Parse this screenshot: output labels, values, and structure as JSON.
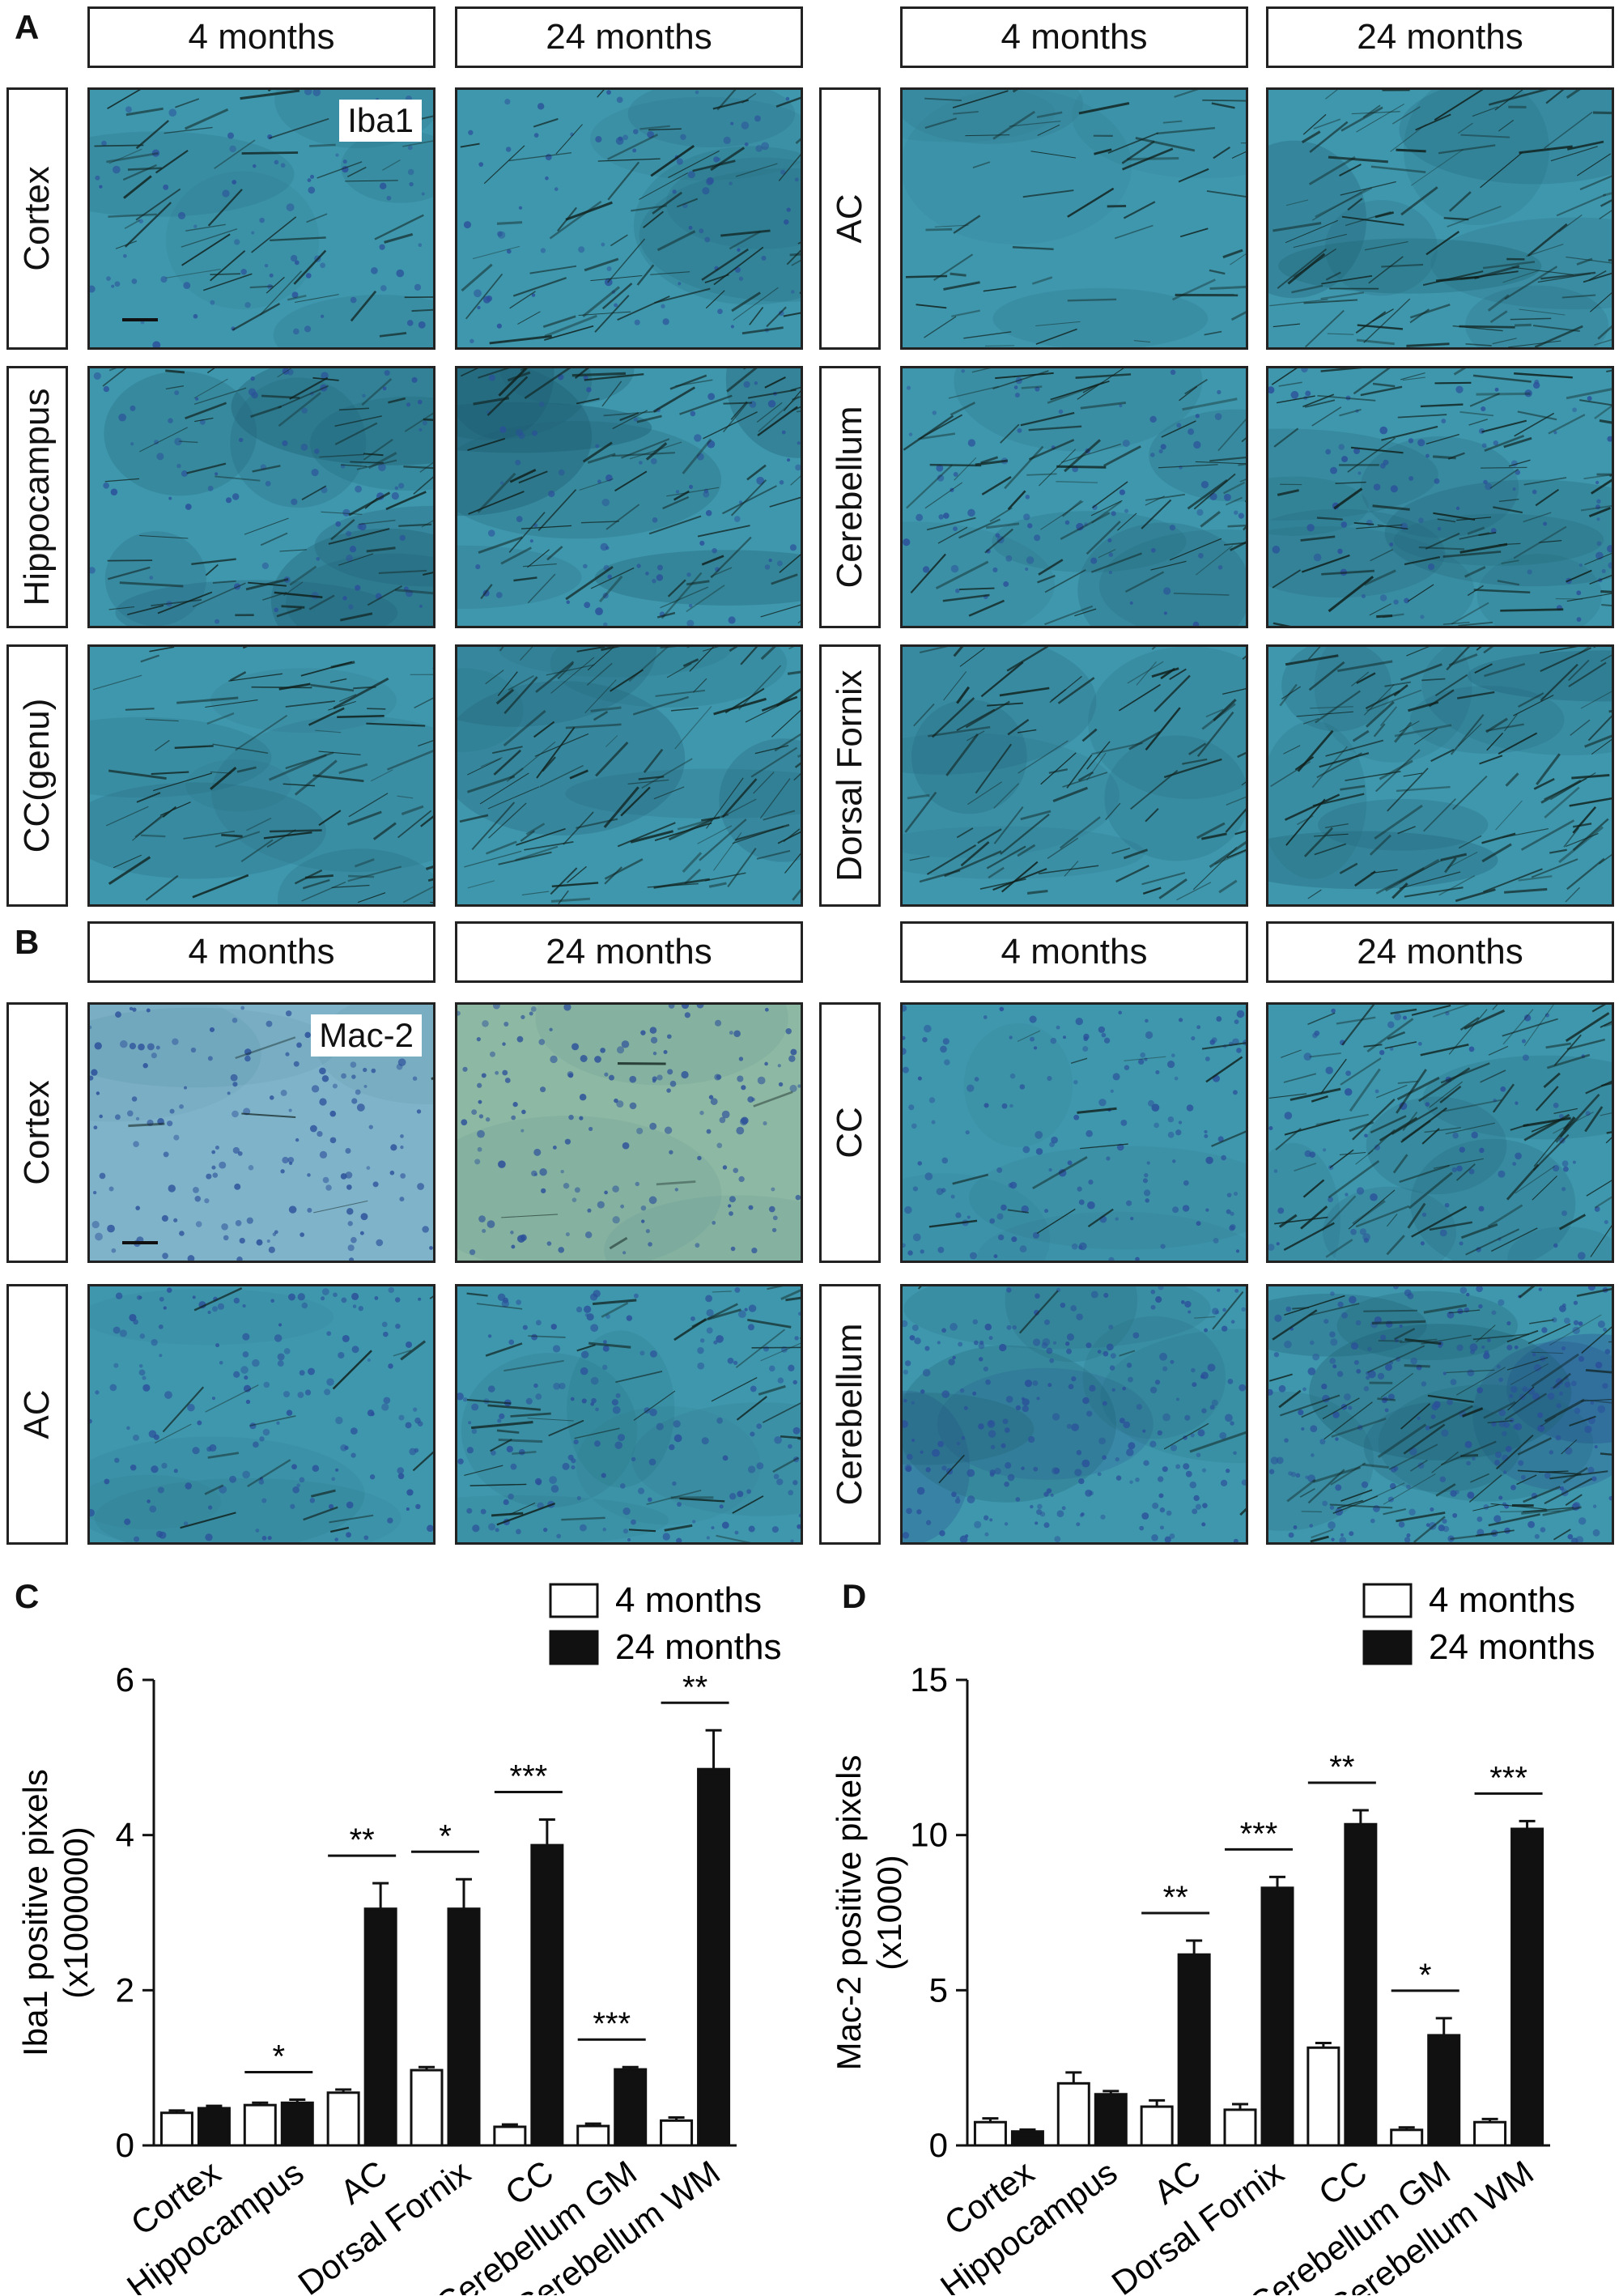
{
  "panels": {
    "A": {
      "letter": "A",
      "stain": "Iba1",
      "col_headers": [
        "4 months",
        "24 months",
        "4 months",
        "24 months"
      ],
      "left_rows": [
        "Cortex",
        "Hippocampus",
        "CC(genu)"
      ],
      "right_rows": [
        "AC",
        "Cerebellum",
        "Dorsal Fornix"
      ]
    },
    "B": {
      "letter": "B",
      "stain": "Mac-2",
      "col_headers": [
        "4 months",
        "24 months",
        "4 months",
        "24 months"
      ],
      "left_rows": [
        "Cortex",
        "AC"
      ],
      "right_rows": [
        "CC",
        "Cerebellum"
      ]
    },
    "C": {
      "letter": "C"
    },
    "D": {
      "letter": "D"
    }
  },
  "colors": {
    "tissue_base": "#3f97ad",
    "tissue_dark": "#1f5f73",
    "tissue_nuclei": "#2b4f9a",
    "stain_fibers": "#10201c",
    "bar_young": "#ffffff",
    "bar_old": "#111111"
  },
  "chart_data": [
    {
      "type": "bar",
      "panel": "C",
      "categories": [
        "Cortex",
        "Hippocampus",
        "AC",
        "Dorsal Fornix",
        "CC",
        "Cerebellum GM",
        "Cerebellum WM"
      ],
      "series": [
        {
          "name": "4 months",
          "values": [
            0.42,
            0.52,
            0.68,
            0.97,
            0.24,
            0.25,
            0.32
          ],
          "errors": [
            0.03,
            0.03,
            0.04,
            0.04,
            0.03,
            0.03,
            0.04
          ]
        },
        {
          "name": "24 months",
          "values": [
            0.48,
            0.55,
            3.05,
            3.05,
            3.87,
            0.98,
            4.85
          ],
          "errors": [
            0.03,
            0.04,
            0.33,
            0.38,
            0.33,
            0.03,
            0.5
          ]
        }
      ],
      "significance": [
        "",
        "*",
        "**",
        "*",
        "***",
        "***",
        "**"
      ],
      "ylabel": "Iba1 positive pixels",
      "ylabel2": "(x1000000)",
      "ylim": [
        0,
        6
      ],
      "yticks": [
        "0",
        "2",
        "4",
        "6"
      ],
      "ytick_values": [
        0,
        2,
        4,
        6
      ],
      "legend": "top-right"
    },
    {
      "type": "bar",
      "panel": "D",
      "categories": [
        "Cortex",
        "Hippocampus",
        "AC",
        "Dorsal Fornix",
        "CC",
        "Cerebellum GM",
        "Cerebellum WM"
      ],
      "series": [
        {
          "name": "4 months",
          "values": [
            0.75,
            2.0,
            1.25,
            1.15,
            3.15,
            0.5,
            0.75
          ],
          "errors": [
            0.12,
            0.35,
            0.2,
            0.18,
            0.15,
            0.08,
            0.1
          ]
        },
        {
          "name": "24 months",
          "values": [
            0.45,
            1.65,
            6.15,
            8.3,
            10.35,
            3.55,
            10.2
          ],
          "errors": [
            0.06,
            0.1,
            0.45,
            0.35,
            0.45,
            0.55,
            0.25
          ]
        }
      ],
      "significance": [
        "",
        "",
        "**",
        "***",
        "**",
        "*",
        "***"
      ],
      "ylabel": "Mac-2 positive pixels",
      "ylabel2": "(x1000)",
      "ylim": [
        0,
        15
      ],
      "yticks": [
        "0",
        "5",
        "10",
        "15"
      ],
      "ytick_values": [
        0,
        5,
        10,
        15
      ],
      "legend": "top-right"
    }
  ]
}
